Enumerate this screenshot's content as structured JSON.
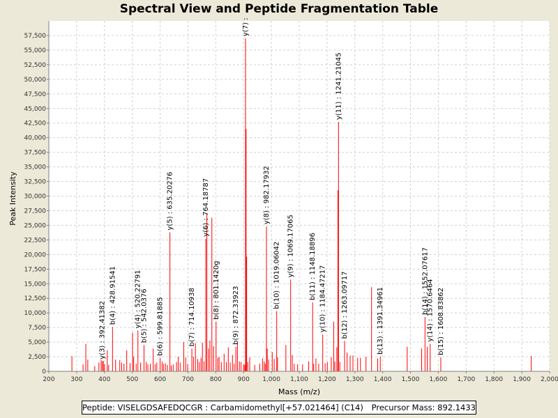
{
  "chart_data": {
    "type": "bar",
    "title": "Spectral View and Peptide Fragmentation Table",
    "xlabel": "Mass (m/z)",
    "ylabel": "Peak Intensity",
    "xlim": [
      200,
      2000
    ],
    "ylim": [
      0,
      60000
    ],
    "x_ticks": [
      200,
      300,
      400,
      500,
      600,
      700,
      800,
      900,
      1000,
      1100,
      1200,
      1300,
      1400,
      1500,
      1600,
      1700,
      1800,
      1900,
      2000
    ],
    "x_tick_labels": [
      "200",
      "300",
      "400",
      "500",
      "600",
      "700",
      "800",
      "900",
      "1,000",
      "1,100",
      "1,200",
      "1,300",
      "1,400",
      "1,500",
      "1,600",
      "1,700",
      "1,800",
      "1,900",
      "2,000"
    ],
    "y_ticks": [
      0,
      2500,
      5000,
      7500,
      10000,
      12500,
      15000,
      17500,
      20000,
      22500,
      25000,
      27500,
      30000,
      32500,
      35000,
      37500,
      40000,
      42500,
      45000,
      47500,
      50000,
      52500,
      55000,
      57500
    ],
    "y_tick_labels": [
      "0",
      "2,500",
      "5,000",
      "7,500",
      "10,000",
      "12,500",
      "15,000",
      "17,500",
      "20,000",
      "22,500",
      "25,000",
      "27,500",
      "30,000",
      "32,500",
      "35,000",
      "37,500",
      "40,000",
      "42,500",
      "45,000",
      "47,500",
      "50,000",
      "52,500",
      "55,000",
      "57,500"
    ],
    "grid": true,
    "bar_color": "#ff0000",
    "peaks": [
      [
        283,
        2600
      ],
      [
        323,
        1200
      ],
      [
        333,
        4700
      ],
      [
        340,
        2000
      ],
      [
        365,
        900
      ],
      [
        380,
        1500
      ],
      [
        388,
        2000
      ],
      [
        392.41382,
        1700
      ],
      [
        396,
        1800
      ],
      [
        400,
        1200
      ],
      [
        410,
        3600
      ],
      [
        415,
        1100
      ],
      [
        428.91541,
        7600
      ],
      [
        440,
        2000
      ],
      [
        455,
        1900
      ],
      [
        462,
        1500
      ],
      [
        470,
        1300
      ],
      [
        480,
        3600
      ],
      [
        492,
        1400
      ],
      [
        501,
        6600
      ],
      [
        505,
        2500
      ],
      [
        514,
        1300
      ],
      [
        520.22791,
        7000
      ],
      [
        530,
        1500
      ],
      [
        542.0376,
        4500
      ],
      [
        550,
        1600
      ],
      [
        556,
        1200
      ],
      [
        565,
        1300
      ],
      [
        575,
        3900
      ],
      [
        582,
        1200
      ],
      [
        588,
        1500
      ],
      [
        599.81885,
        2300
      ],
      [
        607,
        1700
      ],
      [
        612,
        1300
      ],
      [
        619,
        1400
      ],
      [
        626,
        1100
      ],
      [
        635.20276,
        23800
      ],
      [
        640,
        1000
      ],
      [
        647,
        1200
      ],
      [
        659,
        1600
      ],
      [
        665,
        2500
      ],
      [
        672,
        1500
      ],
      [
        685,
        5000
      ],
      [
        692,
        2400
      ],
      [
        699,
        1200
      ],
      [
        714.10938,
        3900
      ],
      [
        720,
        2500
      ],
      [
        727,
        4800
      ],
      [
        735,
        2100
      ],
      [
        741,
        1600
      ],
      [
        747,
        2300
      ],
      [
        752,
        4900
      ],
      [
        758,
        1700
      ],
      [
        764.18787,
        22700
      ],
      [
        768,
        27000
      ],
      [
        774,
        3900
      ],
      [
        779,
        5300
      ],
      [
        786,
        26300
      ],
      [
        792,
        4300
      ],
      [
        801.142,
        8500
      ],
      [
        807,
        2300
      ],
      [
        812,
        2500
      ],
      [
        820,
        1600
      ],
      [
        830,
        3000
      ],
      [
        838,
        1600
      ],
      [
        845,
        4100
      ],
      [
        852,
        1500
      ],
      [
        860,
        2800
      ],
      [
        866,
        1300
      ],
      [
        872.33923,
        4200
      ],
      [
        878,
        4800
      ],
      [
        885,
        1700
      ],
      [
        891,
        1600
      ],
      [
        900,
        1200
      ],
      [
        904,
        1100
      ],
      [
        907,
        57000
      ],
      [
        909,
        41500
      ],
      [
        911,
        19600
      ],
      [
        915,
        1600
      ],
      [
        922,
        2400
      ],
      [
        940,
        1100
      ],
      [
        958,
        1300
      ],
      [
        968,
        2200
      ],
      [
        974,
        1700
      ],
      [
        978,
        1300
      ],
      [
        982.17932,
        24800
      ],
      [
        985,
        3900
      ],
      [
        990,
        2000
      ],
      [
        1003,
        3300
      ],
      [
        1010,
        2100
      ],
      [
        1019.06042,
        10300
      ],
      [
        1022,
        2400
      ],
      [
        1052,
        4500
      ],
      [
        1069.17065,
        15700
      ],
      [
        1075,
        2800
      ],
      [
        1082,
        1300
      ],
      [
        1094,
        1200
      ],
      [
        1112,
        1200
      ],
      [
        1134,
        1700
      ],
      [
        1148.18896,
        11800
      ],
      [
        1152,
        1300
      ],
      [
        1160,
        2200
      ],
      [
        1170,
        1300
      ],
      [
        1184.47217,
        6300
      ],
      [
        1193,
        1400
      ],
      [
        1201,
        1600
      ],
      [
        1215,
        2400
      ],
      [
        1224,
        8500
      ],
      [
        1228,
        1700
      ],
      [
        1235,
        4100
      ],
      [
        1239,
        31000
      ],
      [
        1241.21045,
        42700
      ],
      [
        1246,
        1600
      ],
      [
        1263.09717,
        5200
      ],
      [
        1272,
        3200
      ],
      [
        1283,
        2700
      ],
      [
        1293,
        2700
      ],
      [
        1310,
        2300
      ],
      [
        1320,
        2300
      ],
      [
        1340,
        2500
      ],
      [
        1360,
        14400
      ],
      [
        1382,
        2200
      ],
      [
        1391.34961,
        2500
      ],
      [
        1488,
        4200
      ],
      [
        1540,
        3900
      ],
      [
        1552.07617,
        9300
      ],
      [
        1560,
        4200
      ],
      [
        1570.6464,
        4700
      ],
      [
        1608.83862,
        2400
      ],
      [
        1934,
        2600
      ]
    ],
    "annotations": [
      {
        "label": "y(3) : 392.41382",
        "mz": 392.41382,
        "y": 1700
      },
      {
        "label": "b(4) : 428.91541",
        "mz": 428.91541,
        "y": 7600
      },
      {
        "label": "y(4) : 520.22791",
        "mz": 520.22791,
        "y": 7000
      },
      {
        "label": "b(5) : 542.0376",
        "mz": 542.0376,
        "y": 4500
      },
      {
        "label": "b(6) : 599.81885",
        "mz": 599.81885,
        "y": 2300
      },
      {
        "label": "y(5) : 635.20276",
        "mz": 635.20276,
        "y": 23800
      },
      {
        "label": "b(7) : 714.10938",
        "mz": 714.10938,
        "y": 3900
      },
      {
        "label": "y(6) : 764.18787",
        "mz": 764.18787,
        "y": 22700
      },
      {
        "label": "b(8) : 801.1420g",
        "mz": 801.142,
        "y": 8500
      },
      {
        "label": "b(9) : 872.33923",
        "mz": 872.33923,
        "y": 4200
      },
      {
        "label": "y(7) :",
        "mz": 907,
        "y": 57000
      },
      {
        "label": "y(8) : 982.17932",
        "mz": 982.17932,
        "y": 24800
      },
      {
        "label": "b(10) : 1019.06042",
        "mz": 1019.06042,
        "y": 10300
      },
      {
        "label": "y(9) : 1069.17065",
        "mz": 1069.17065,
        "y": 15700
      },
      {
        "label": "b(11) : 1148.18896",
        "mz": 1148.18896,
        "y": 11800
      },
      {
        "label": "y(10) : 1184.47217",
        "mz": 1184.47217,
        "y": 6300
      },
      {
        "label": "y(11) : 1241.21045",
        "mz": 1241.21045,
        "y": 42700
      },
      {
        "label": "b(12) : 1263.09717",
        "mz": 1263.09717,
        "y": 5200
      },
      {
        "label": "b(13) : 1391.34961",
        "mz": 1391.34961,
        "y": 2500
      },
      {
        "label": "b(14) : 1552.07617",
        "mz": 1552.07617,
        "y": 9300
      },
      {
        "label": "y(14) : 1570.6464",
        "mz": 1570.6464,
        "y": 4700
      },
      {
        "label": "b(15) : 1608.83862",
        "mz": 1608.83862,
        "y": 2400
      }
    ]
  },
  "footer": {
    "peptide": "Peptide: VISELGDSAFEDQCGR : Carbamidomethyl[+57.021464] (C14)",
    "precursor": "Precursor Mass: 892.1433"
  }
}
